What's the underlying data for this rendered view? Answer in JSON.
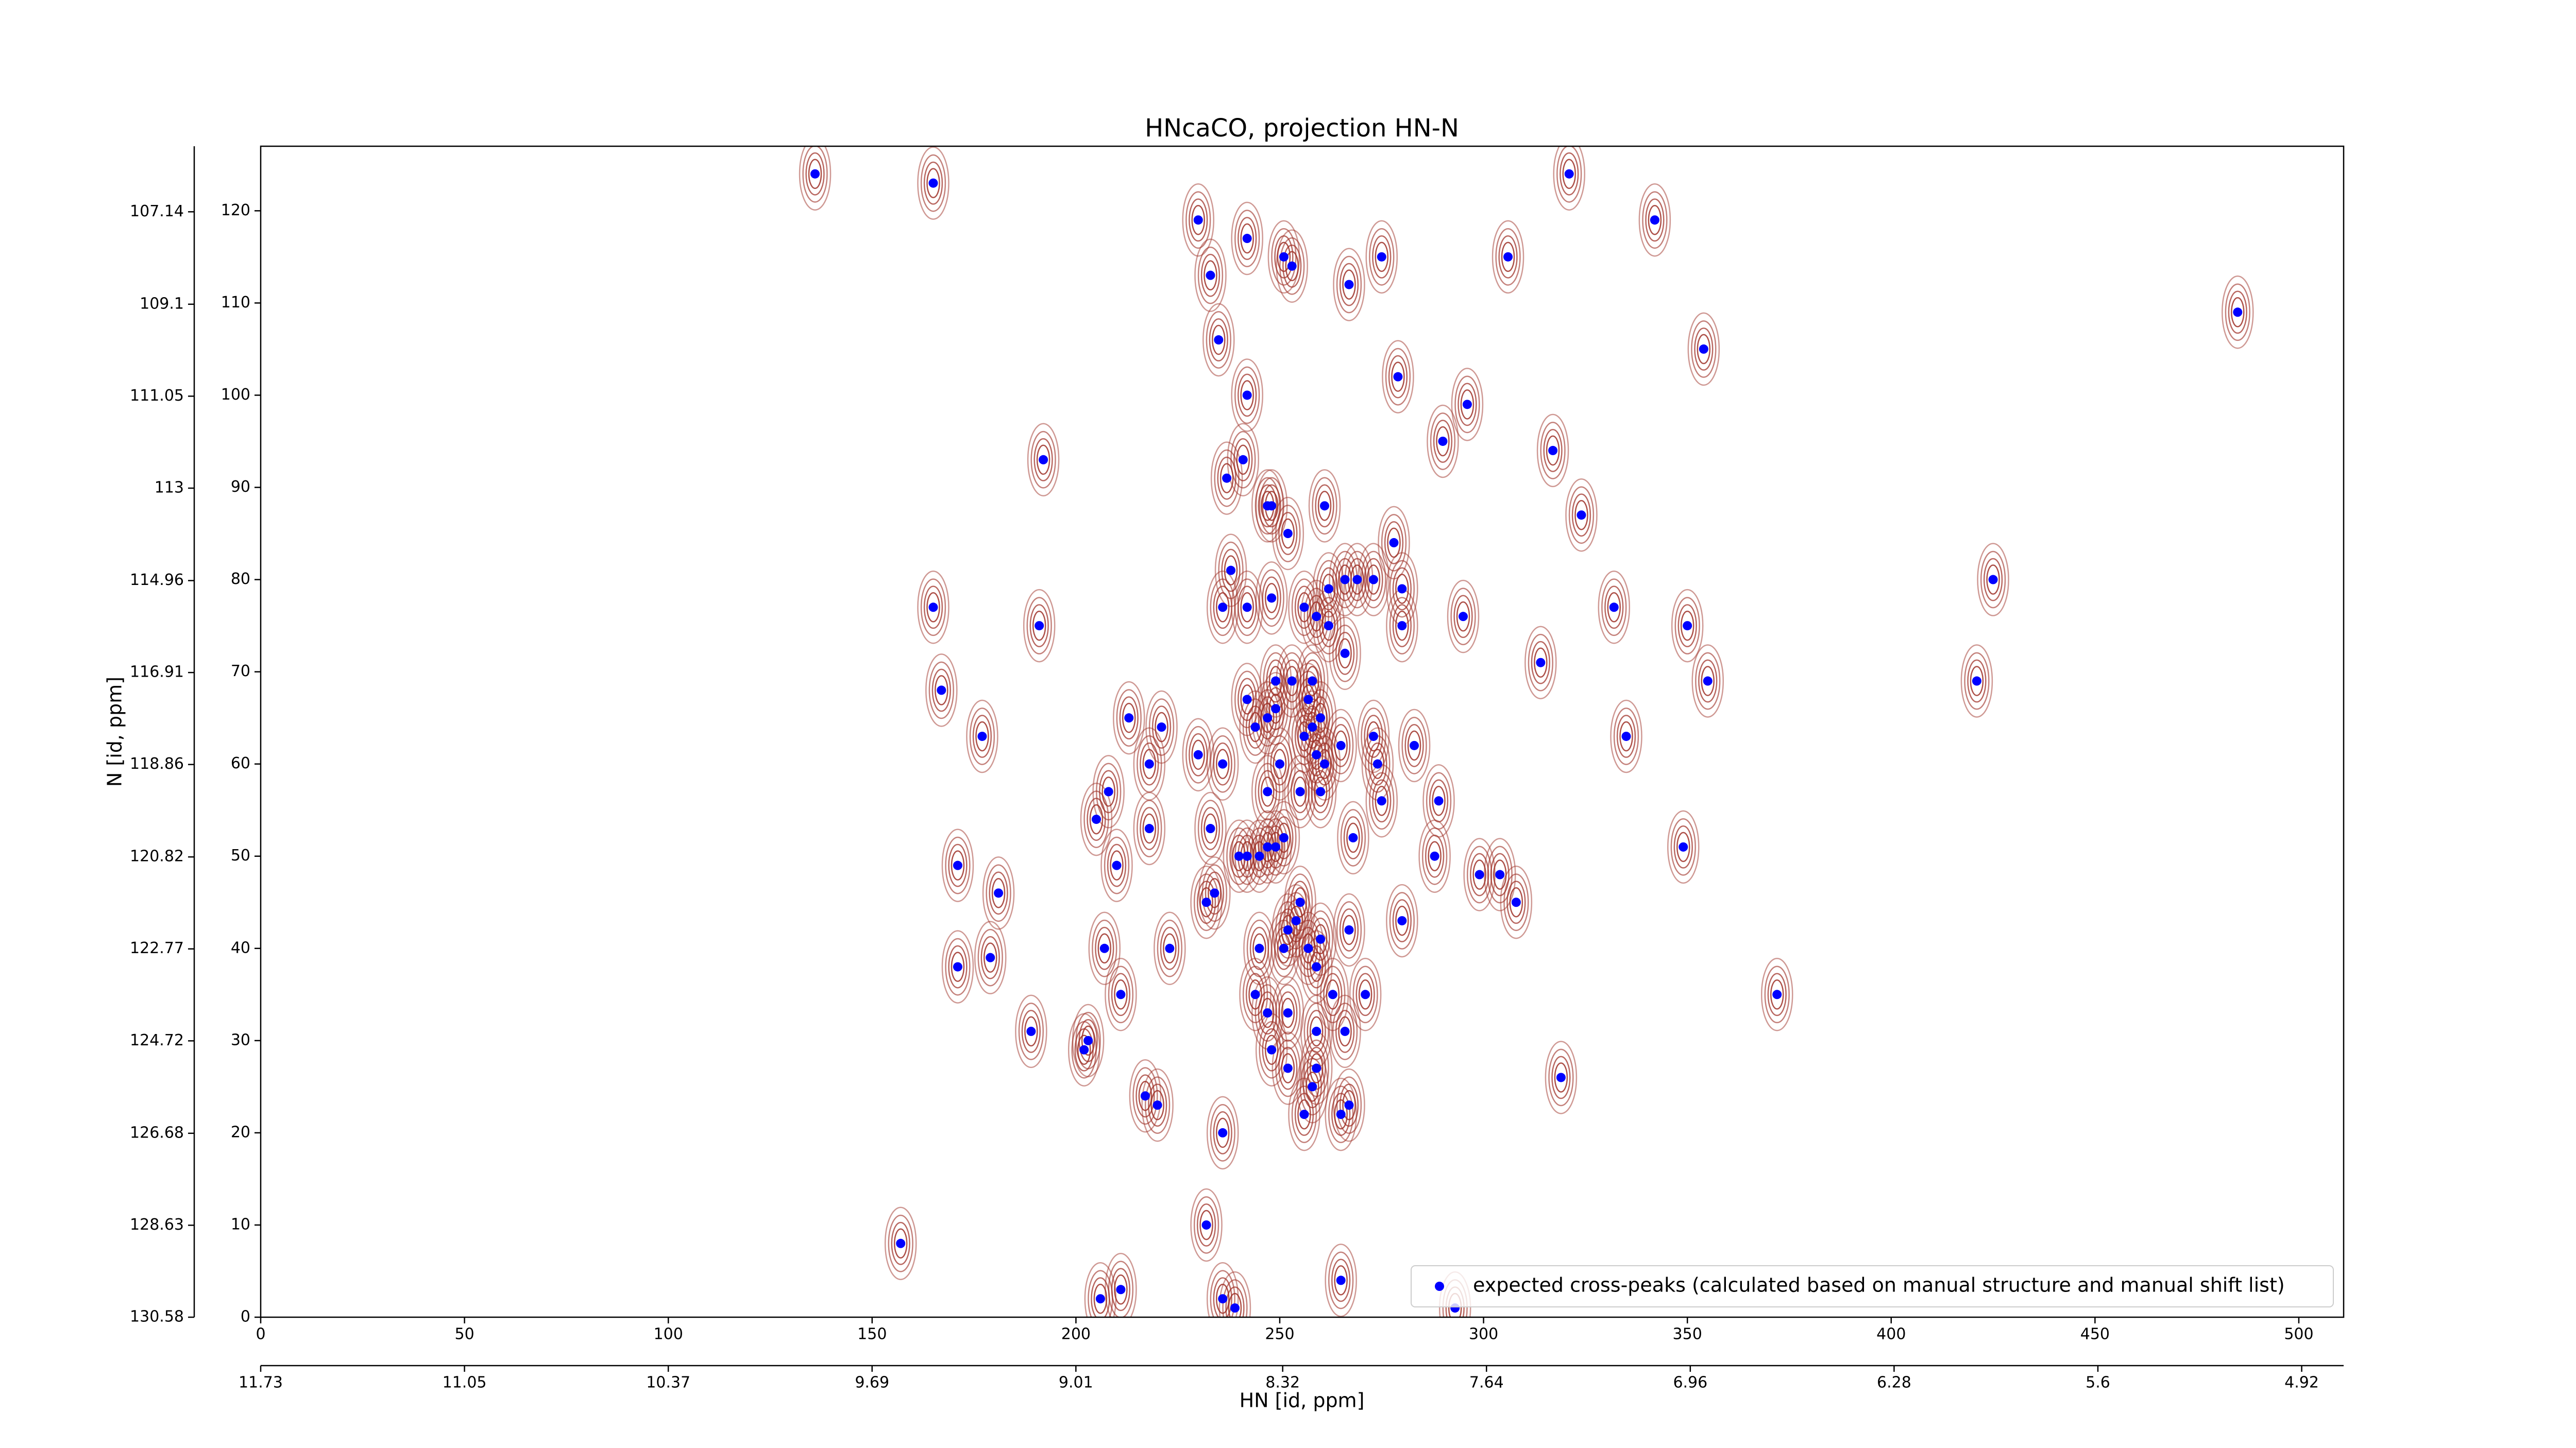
{
  "chart_data": {
    "type": "scatter",
    "title": "HNcaCO, projection HN-N",
    "x_label": "HN [id, ppm]",
    "y_label": "N [id, ppm]",
    "xlim": [
      0,
      511
    ],
    "ylim": [
      0,
      127
    ],
    "xticks": [
      0,
      50,
      100,
      150,
      200,
      250,
      300,
      350,
      400,
      450,
      500
    ],
    "yticks": [
      0,
      10,
      20,
      30,
      40,
      50,
      60,
      70,
      80,
      90,
      100,
      110,
      120
    ],
    "x2lim": [
      11.73,
      4.78
    ],
    "x2ticks": [
      11.73,
      11.05,
      10.37,
      9.69,
      9.01,
      8.32,
      7.64,
      6.96,
      6.28,
      5.6,
      4.92
    ],
    "y2lim": [
      130.58,
      105.75
    ],
    "y2ticks": [
      130.58,
      128.63,
      126.68,
      124.72,
      122.77,
      120.82,
      118.86,
      116.91,
      114.96,
      113.0,
      111.05,
      109.1,
      107.14
    ],
    "legend": "lower right",
    "contour_color": "#a0332a",
    "series": [
      {
        "name": "expected cross-peaks (calculated based on manual structure and manual shift list)",
        "color": "#0000ff",
        "x": [
          136,
          165,
          230,
          242,
          251,
          253,
          233,
          267,
          275,
          306,
          342,
          321,
          235,
          354,
          485,
          242,
          279,
          296,
          290,
          241,
          192,
          317,
          237,
          248,
          261,
          324,
          252,
          278,
          238,
          266,
          269,
          273,
          425,
          262,
          242,
          248,
          256,
          280,
          165,
          236,
          259,
          295,
          332,
          350,
          191,
          280,
          262,
          266,
          314,
          421,
          167,
          355,
          249,
          253,
          258,
          242,
          257,
          249,
          247,
          260,
          213,
          221,
          177,
          273,
          258,
          244,
          256,
          335,
          283,
          265,
          259,
          230,
          236,
          250,
          261,
          218,
          274,
          255,
          208,
          247,
          260,
          289,
          275,
          205,
          218,
          233,
          251,
          268,
          349,
          247,
          249,
          240,
          242,
          245,
          210,
          288,
          171,
          299,
          304,
          181,
          232,
          234,
          308,
          255,
          280,
          254,
          252,
          267,
          260,
          223,
          245,
          251,
          257,
          207,
          259,
          179,
          171,
          372,
          211,
          244,
          271,
          263,
          252,
          247,
          189,
          203,
          266,
          259,
          248,
          202,
          252,
          259,
          319,
          258,
          217,
          220,
          267,
          256,
          265,
          236,
          232,
          157,
          265,
          211,
          206,
          236,
          239,
          293,
          247
        ],
        "values": [
          124,
          123,
          119,
          117,
          115,
          114,
          113,
          112,
          115,
          115,
          119,
          124,
          106,
          105,
          109,
          100,
          102,
          99,
          95,
          93,
          93,
          94,
          91,
          88,
          88,
          87,
          85,
          84,
          81,
          80,
          80,
          80,
          80,
          79,
          77,
          78,
          77,
          79,
          77,
          77,
          76,
          76,
          77,
          75,
          75,
          75,
          75,
          72,
          71,
          69,
          68,
          69,
          69,
          69,
          69,
          67,
          67,
          66,
          65,
          65,
          65,
          64,
          63,
          63,
          64,
          64,
          63,
          63,
          62,
          62,
          61,
          61,
          60,
          60,
          60,
          60,
          60,
          57,
          57,
          57,
          57,
          56,
          56,
          54,
          53,
          53,
          52,
          52,
          51,
          51,
          51,
          50,
          50,
          50,
          49,
          50,
          49,
          48,
          48,
          46,
          45,
          46,
          45,
          45,
          43,
          43,
          42,
          42,
          41,
          40,
          40,
          40,
          40,
          40,
          38,
          39,
          38,
          35,
          35,
          35,
          35,
          35,
          33,
          33,
          31,
          30,
          31,
          31,
          29,
          29,
          27,
          27,
          26,
          25,
          24,
          23,
          23,
          22,
          22,
          20,
          10,
          8,
          4,
          3,
          2,
          2,
          1,
          1,
          88
        ]
      }
    ]
  }
}
